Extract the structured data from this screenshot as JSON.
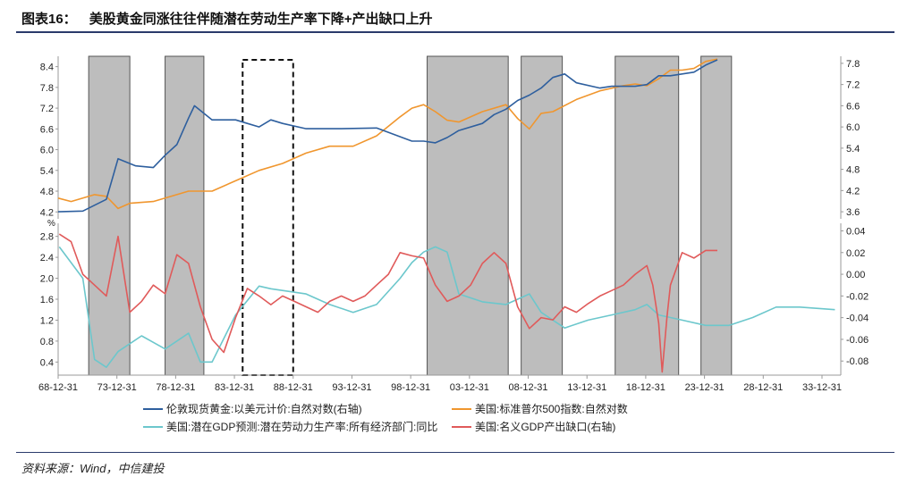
{
  "header": {
    "title_number": "图表16：",
    "title_text": "美股黄金同涨往往伴随潜在劳动生产率下降+产出缺口上升"
  },
  "footer": {
    "source": "资料来源：Wind，中信建投"
  },
  "colors": {
    "gold": "#2e5f9e",
    "sp500": "#f0962e",
    "potential_gdp": "#6cc7cc",
    "output_gap": "#e05a5a",
    "shade": "#bdbdbd"
  },
  "chart_data": [
    {
      "type": "line",
      "panel": "top",
      "left_yaxis": {
        "ticks": [
          "4.2",
          "4.8",
          "5.4",
          "6.0",
          "6.6",
          "7.2",
          "7.8",
          "8.4"
        ],
        "ylim": [
          4.0,
          8.7
        ]
      },
      "right_yaxis": {
        "ticks": [
          "3.6",
          "4.2",
          "4.8",
          "5.4",
          "6.0",
          "6.6",
          "7.2",
          "7.8"
        ],
        "ylim": [
          3.4,
          8.0
        ]
      },
      "series": [
        {
          "name": "伦敦现货黄金:以美元计价:自然对数(右轴)",
          "axis": "right",
          "color_key": "gold",
          "x": [
            1968.9,
            1971,
            1973,
            1974,
            1975.5,
            1977,
            1978,
            1979,
            1980,
            1980.5,
            1982,
            1984,
            1985,
            1986,
            1987,
            1988,
            1990,
            1993,
            1996,
            1999,
            2000,
            2001,
            2002,
            2003,
            2005,
            2006,
            2007,
            2008,
            2009,
            2010,
            2011,
            2012,
            2013,
            2015,
            2016,
            2018,
            2019,
            2020,
            2021,
            2022,
            2023,
            2024,
            2025
          ],
          "y": [
            3.6,
            3.62,
            3.95,
            5.1,
            4.9,
            4.85,
            5.2,
            5.5,
            6.25,
            6.6,
            6.2,
            6.2,
            6.1,
            6.0,
            6.2,
            6.1,
            5.95,
            5.95,
            5.97,
            5.6,
            5.6,
            5.55,
            5.7,
            5.9,
            6.1,
            6.35,
            6.5,
            6.75,
            6.9,
            7.1,
            7.4,
            7.5,
            7.25,
            7.1,
            7.15,
            7.15,
            7.2,
            7.45,
            7.45,
            7.5,
            7.55,
            7.75,
            7.9
          ]
        },
        {
          "name": "美国:标准普尔500指数:自然对数",
          "axis": "left",
          "color_key": "sp500",
          "x": [
            1968.9,
            1970,
            1972,
            1973,
            1974,
            1975,
            1977,
            1980,
            1982,
            1984,
            1986,
            1988,
            1990,
            1992,
            1994,
            1996,
            1998,
            1999,
            2000,
            2001,
            2002,
            2003,
            2005,
            2007,
            2008,
            2009,
            2010,
            2011,
            2013,
            2015,
            2017,
            2018,
            2019,
            2020,
            2021,
            2022,
            2023,
            2024,
            2025
          ],
          "y": [
            4.6,
            4.5,
            4.7,
            4.65,
            4.3,
            4.45,
            4.5,
            4.8,
            4.8,
            5.1,
            5.4,
            5.6,
            5.9,
            6.1,
            6.1,
            6.4,
            6.95,
            7.2,
            7.3,
            7.1,
            6.85,
            6.8,
            7.1,
            7.3,
            6.9,
            6.6,
            7.05,
            7.1,
            7.45,
            7.7,
            7.85,
            7.9,
            7.85,
            8.05,
            8.3,
            8.3,
            8.35,
            8.55,
            8.62
          ]
        }
      ]
    },
    {
      "type": "line",
      "panel": "bottom",
      "left_yaxis": {
        "unit": "%",
        "ticks": [
          "0.4",
          "0.8",
          "1.2",
          "1.6",
          "2.0",
          "2.4",
          "2.8"
        ],
        "ylim": [
          0.15,
          3.05
        ]
      },
      "right_yaxis": {
        "ticks": [
          "-0.08",
          "-0.06",
          "-0.04",
          "-0.02",
          "0.00",
          "0.02",
          "0.04"
        ],
        "ylim": [
          -0.093,
          0.047
        ]
      },
      "x_axis": {
        "ticks": [
          "68-12-31",
          "73-12-31",
          "78-12-31",
          "83-12-31",
          "88-12-31",
          "93-12-31",
          "98-12-31",
          "03-12-31",
          "08-12-31",
          "13-12-31",
          "18-12-31",
          "23-12-31",
          "28-12-31",
          "33-12-31"
        ],
        "xlim": [
          1968.9,
          2035.5
        ]
      },
      "series": [
        {
          "name": "美国:潜在GDP预测:潜在劳动力生产率:所有经济部门:同比",
          "axis": "left",
          "color_key": "potential_gdp",
          "x": [
            1969,
            1971,
            1972,
            1973,
            1974,
            1976,
            1978,
            1980,
            1981,
            1982,
            1984,
            1986,
            1987,
            1990,
            1992,
            1994,
            1996,
            1998,
            1999,
            2000,
            2001,
            2002,
            2003,
            2005,
            2007,
            2009,
            2010,
            2012,
            2014,
            2016,
            2018,
            2019,
            2020,
            2022,
            2024,
            2026,
            2028,
            2030,
            2032,
            2035
          ],
          "y": [
            2.6,
            2.0,
            0.45,
            0.3,
            0.6,
            0.9,
            0.65,
            0.95,
            0.4,
            0.4,
            1.3,
            1.85,
            1.8,
            1.7,
            1.5,
            1.35,
            1.5,
            2.0,
            2.3,
            2.5,
            2.6,
            2.5,
            1.7,
            1.55,
            1.5,
            1.7,
            1.35,
            1.05,
            1.2,
            1.3,
            1.4,
            1.5,
            1.3,
            1.2,
            1.1,
            1.1,
            1.25,
            1.45,
            1.45,
            1.4
          ]
        },
        {
          "name": "美国:名义GDP产出缺口(右轴)",
          "axis": "right",
          "color_key": "output_gap",
          "x": [
            1969,
            1970,
            1971,
            1972,
            1973,
            1974,
            1975,
            1976,
            1977,
            1978,
            1979,
            1980,
            1981,
            1982,
            1983,
            1984,
            1985,
            1986,
            1987,
            1988,
            1989,
            1990,
            1991,
            1992,
            1993,
            1994,
            1995,
            1996,
            1997,
            1998,
            1999,
            2000,
            2001,
            2002,
            2003,
            2004,
            2005,
            2006,
            2007,
            2008,
            2008.5,
            2009,
            2010,
            2011,
            2012,
            2013,
            2014,
            2015,
            2016,
            2017,
            2018,
            2019,
            2019.5,
            2020,
            2020.3,
            2020.7,
            2021,
            2022,
            2023,
            2024,
            2025
          ],
          "y": [
            0.037,
            0.03,
            0.0,
            -0.01,
            -0.02,
            0.035,
            -0.035,
            -0.025,
            -0.01,
            -0.018,
            0.018,
            0.01,
            -0.03,
            -0.06,
            -0.072,
            -0.04,
            -0.013,
            -0.02,
            -0.028,
            -0.02,
            -0.025,
            -0.03,
            -0.035,
            -0.025,
            -0.02,
            -0.025,
            -0.02,
            -0.01,
            0.0,
            0.02,
            0.017,
            0.015,
            -0.01,
            -0.025,
            -0.02,
            -0.01,
            0.01,
            0.02,
            0.01,
            -0.03,
            -0.04,
            -0.05,
            -0.04,
            -0.042,
            -0.03,
            -0.035,
            -0.027,
            -0.02,
            -0.015,
            -0.01,
            0.0,
            0.008,
            -0.01,
            -0.045,
            -0.09,
            -0.04,
            -0.01,
            0.02,
            0.015,
            0.022,
            0.022
          ]
        }
      ]
    }
  ],
  "shaded_periods": [
    [
      1971.5,
      1975
    ],
    [
      1978,
      1981.3
    ],
    [
      2000.3,
      2007.2
    ],
    [
      2008.3,
      2011.8
    ],
    [
      2016.3,
      2021.7
    ],
    [
      2023.6,
      2026.2
    ]
  ],
  "dashed_period": [
    1984.6,
    1988.9
  ]
}
